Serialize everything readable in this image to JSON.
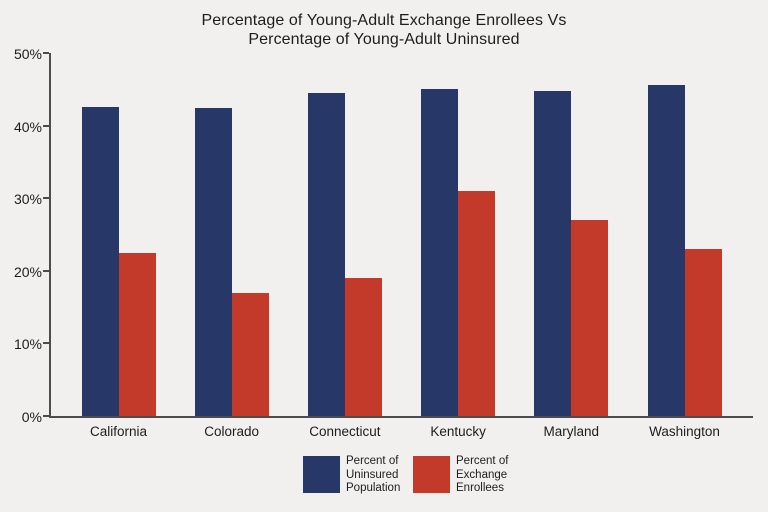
{
  "title": {
    "line1": "Percentage of Young-Adult Exchange Enrollees Vs",
    "line2": "Percentage of Young-Adult Uninsured"
  },
  "colors": {
    "background": "#f1f0ee",
    "axis": "#4c4c4c",
    "text": "#1d1d1d",
    "navy": "#263768",
    "red": "#c33a2b"
  },
  "chart_data": {
    "type": "bar",
    "title": "Percentage of Young-Adult Exchange Enrollees Vs Percentage of Young-Adult Uninsured",
    "categories": [
      "California",
      "Colorado",
      "Connecticut",
      "Kentucky",
      "Maryland",
      "Washington"
    ],
    "series": [
      {
        "name": "Percent of Uninsured Population",
        "color": "#263768",
        "values": [
          42.5,
          42.4,
          44.5,
          45.0,
          44.7,
          45.6
        ]
      },
      {
        "name": "Percent of Exchange Enrollees",
        "color": "#c33a2b",
        "values": [
          22.5,
          17.0,
          19.0,
          31.0,
          27.0,
          23.0
        ]
      }
    ],
    "xlabel": "",
    "ylabel": "",
    "ylim": [
      0,
      50
    ],
    "yticks": [
      {
        "label": "0%",
        "value": 0
      },
      {
        "label": "10%",
        "value": 10
      },
      {
        "label": "20%",
        "value": 20
      },
      {
        "label": "30%",
        "value": 30
      },
      {
        "label": "40%",
        "value": 40
      },
      {
        "label": "50%",
        "value": 50
      }
    ],
    "grid": false,
    "legend_position": "bottom-center",
    "legend": [
      {
        "series": "Percent of Uninsured Population",
        "label": "Percent of\nUninsured\nPopulation"
      },
      {
        "series": "Percent of Exchange Enrollees",
        "label": "Percent of\nExchange\nEnrollees"
      }
    ]
  }
}
